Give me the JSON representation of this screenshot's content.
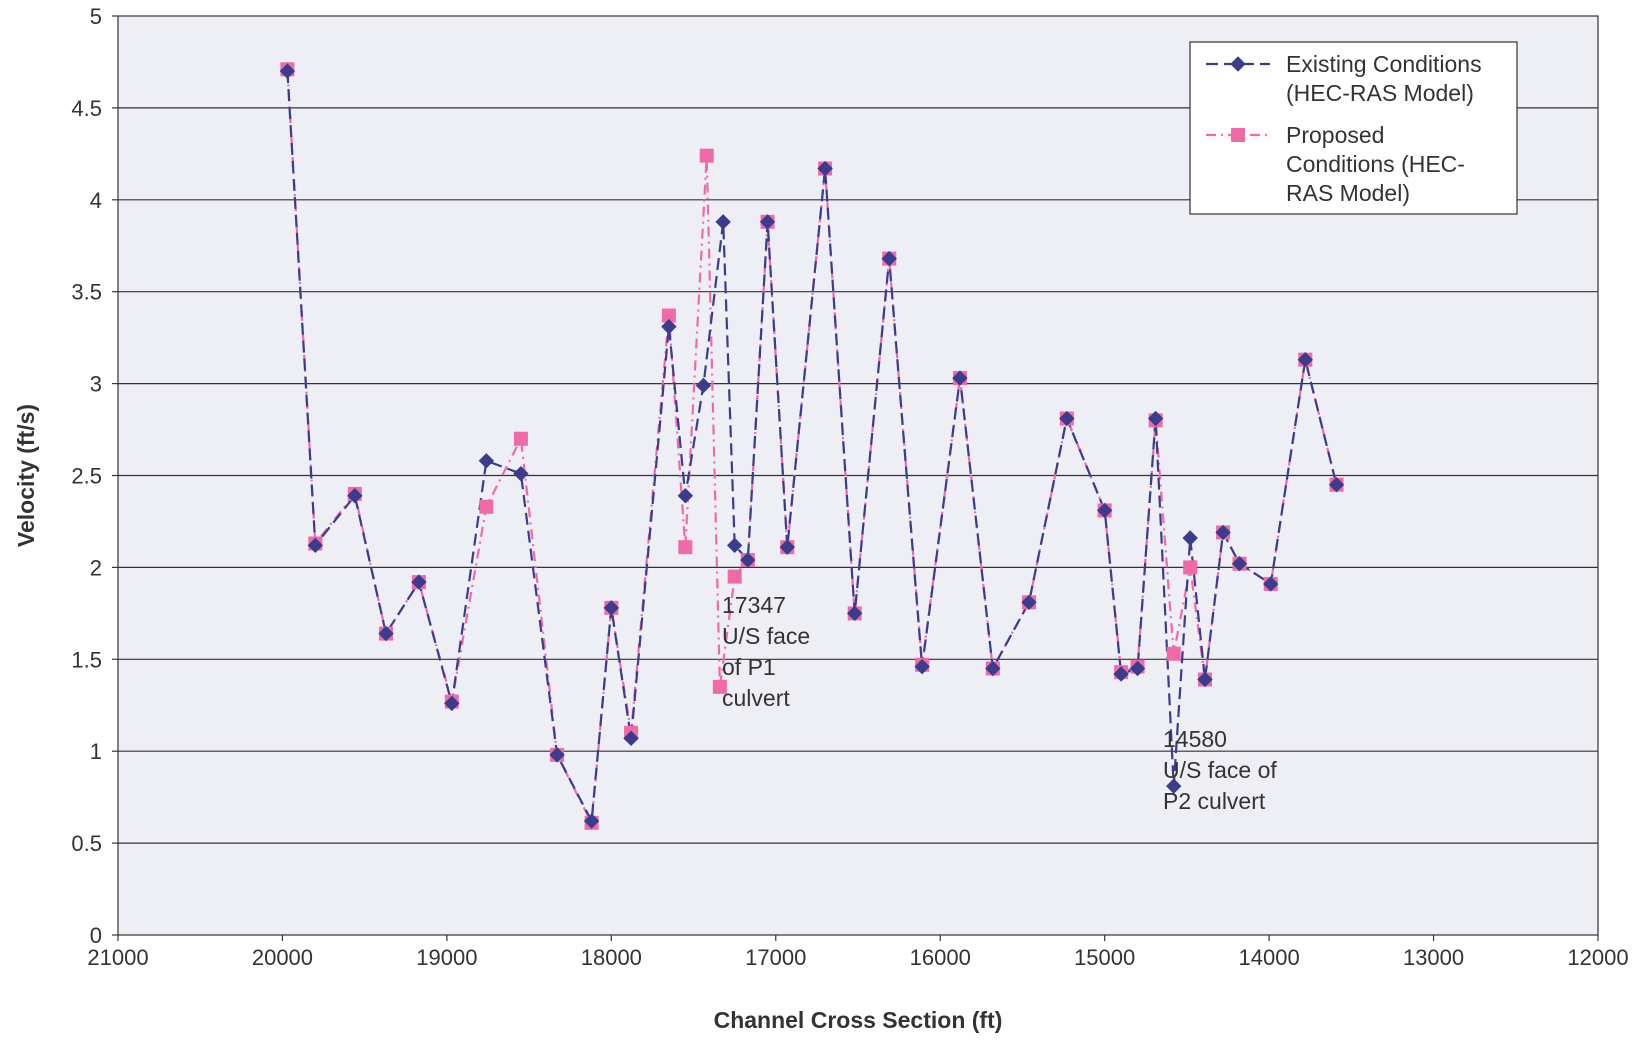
{
  "chart_data": {
    "type": "line",
    "xlabel": "Channel Cross Section (ft)",
    "ylabel": "Velocity (ft/s)",
    "xlim": [
      21000,
      12000
    ],
    "ylim": [
      0,
      5
    ],
    "x_reversed": true,
    "x_ticks": [
      "21000",
      "20000",
      "19000",
      "18000",
      "17000",
      "16000",
      "15000",
      "14000",
      "13000",
      "12000"
    ],
    "y_ticks": [
      "0",
      "0.5",
      "1",
      "1.5",
      "2",
      "2.5",
      "3",
      "3.5",
      "4",
      "4.5",
      "5"
    ],
    "grid": "horizontal",
    "legend_position": "top-right",
    "series": [
      {
        "name": "Existing Conditions (HEC-RAS Model)",
        "legend_lines": [
          "Existing Conditions",
          "(HEC-RAS Model)"
        ],
        "color": "#3c3c8c",
        "marker": "diamond",
        "points": [
          [
            19970,
            4.7
          ],
          [
            19800,
            2.12
          ],
          [
            19560,
            2.39
          ],
          [
            19370,
            1.64
          ],
          [
            19170,
            1.92
          ],
          [
            18970,
            1.26
          ],
          [
            18760,
            2.58
          ],
          [
            18550,
            2.51
          ],
          [
            18330,
            0.98
          ],
          [
            18120,
            0.62
          ],
          [
            18000,
            1.78
          ],
          [
            17880,
            1.07
          ],
          [
            17650,
            3.31
          ],
          [
            17550,
            2.39
          ],
          [
            17440,
            2.99
          ],
          [
            17320,
            3.88
          ],
          [
            17250,
            2.12
          ],
          [
            17170,
            2.04
          ],
          [
            17050,
            3.88
          ],
          [
            16930,
            2.11
          ],
          [
            16700,
            4.17
          ],
          [
            16520,
            1.75
          ],
          [
            16310,
            3.68
          ],
          [
            16110,
            1.46
          ],
          [
            15880,
            3.03
          ],
          [
            15680,
            1.45
          ],
          [
            15460,
            1.81
          ],
          [
            15230,
            2.81
          ],
          [
            15000,
            2.31
          ],
          [
            14900,
            1.42
          ],
          [
            14800,
            1.45
          ],
          [
            14690,
            2.81
          ],
          [
            14580,
            0.81
          ],
          [
            14480,
            2.16
          ],
          [
            14390,
            1.39
          ],
          [
            14280,
            2.19
          ],
          [
            14180,
            2.02
          ],
          [
            13990,
            1.91
          ],
          [
            13780,
            3.13
          ],
          [
            13590,
            2.45
          ]
        ]
      },
      {
        "name": "Proposed Conditions (HEC-RAS Model)",
        "legend_lines": [
          "Proposed",
          "Conditions (HEC-",
          "RAS Model)"
        ],
        "color": "#f06aa8",
        "marker": "square",
        "points": [
          [
            19970,
            4.71
          ],
          [
            19800,
            2.13
          ],
          [
            19560,
            2.4
          ],
          [
            19370,
            1.64
          ],
          [
            19170,
            1.92
          ],
          [
            18970,
            1.27
          ],
          [
            18760,
            2.33
          ],
          [
            18550,
            2.7
          ],
          [
            18330,
            0.98
          ],
          [
            18120,
            0.61
          ],
          [
            18000,
            1.78
          ],
          [
            17880,
            1.1
          ],
          [
            17650,
            3.37
          ],
          [
            17550,
            2.11
          ],
          [
            17420,
            4.24
          ],
          [
            17340,
            1.35
          ],
          [
            17250,
            1.95
          ],
          [
            17170,
            2.04
          ],
          [
            17050,
            3.88
          ],
          [
            16930,
            2.11
          ],
          [
            16700,
            4.17
          ],
          [
            16520,
            1.75
          ],
          [
            16310,
            3.68
          ],
          [
            16110,
            1.47
          ],
          [
            15880,
            3.03
          ],
          [
            15680,
            1.45
          ],
          [
            15460,
            1.81
          ],
          [
            15230,
            2.81
          ],
          [
            15000,
            2.31
          ],
          [
            14900,
            1.43
          ],
          [
            14800,
            1.46
          ],
          [
            14690,
            2.8
          ],
          [
            14580,
            1.53
          ],
          [
            14480,
            2.0
          ],
          [
            14390,
            1.39
          ],
          [
            14280,
            2.19
          ],
          [
            14180,
            2.02
          ],
          [
            13990,
            1.91
          ],
          [
            13780,
            3.13
          ],
          [
            13590,
            2.45
          ]
        ]
      }
    ],
    "annotations": [
      {
        "x": 17347,
        "lines": [
          "17347",
          "U/S face",
          "of P1",
          "culvert"
        ]
      },
      {
        "x": 14580,
        "lines": [
          "14580",
          "U/S face of",
          "P2 culvert"
        ]
      }
    ]
  },
  "colors": {
    "plot_background": "#eeeef5",
    "gridline": "#333333",
    "axis": "#333333",
    "existing_series": "#3c3c8c",
    "proposed_series": "#f06aa8"
  }
}
